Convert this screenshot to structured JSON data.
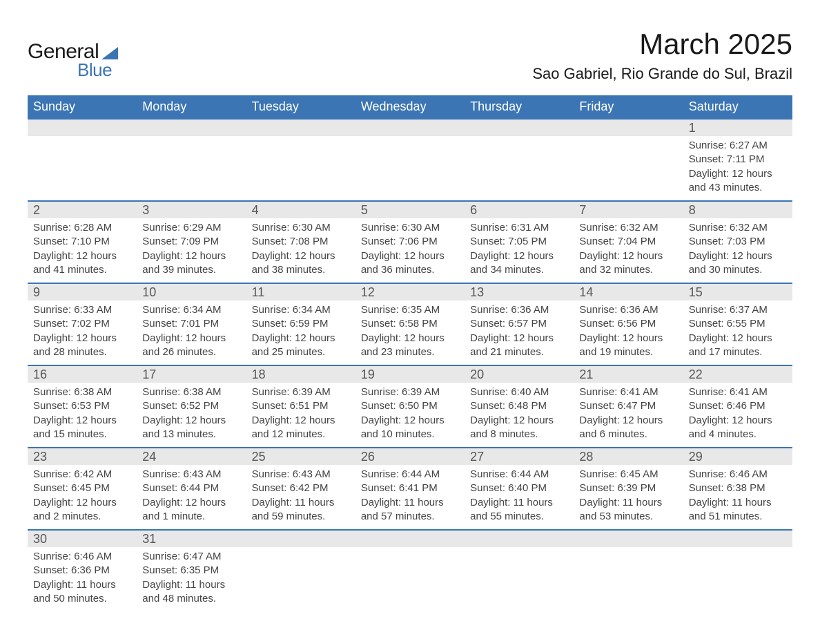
{
  "logo": {
    "word1": "General",
    "word2": "Blue",
    "accent_color": "#3b75b3",
    "text_color": "#1a1a1a"
  },
  "title": "March 2025",
  "location": "Sao Gabriel, Rio Grande do Sul, Brazil",
  "colors": {
    "header_bg": "#3b75b3",
    "header_text": "#ffffff",
    "daynum_bg": "#e8e8e8",
    "daynum_text": "#555555",
    "body_text": "#444444",
    "row_border": "#3b75b3",
    "page_bg": "#ffffff"
  },
  "fonts": {
    "family": "Arial, Helvetica, sans-serif",
    "title_size_pt": 32,
    "location_size_pt": 17,
    "dayheader_size_pt": 14,
    "daynum_size_pt": 14,
    "body_size_pt": 11
  },
  "day_headers": [
    "Sunday",
    "Monday",
    "Tuesday",
    "Wednesday",
    "Thursday",
    "Friday",
    "Saturday"
  ],
  "weeks": [
    [
      {
        "day": "",
        "sunrise": "",
        "sunset": "",
        "daylight": ""
      },
      {
        "day": "",
        "sunrise": "",
        "sunset": "",
        "daylight": ""
      },
      {
        "day": "",
        "sunrise": "",
        "sunset": "",
        "daylight": ""
      },
      {
        "day": "",
        "sunrise": "",
        "sunset": "",
        "daylight": ""
      },
      {
        "day": "",
        "sunrise": "",
        "sunset": "",
        "daylight": ""
      },
      {
        "day": "",
        "sunrise": "",
        "sunset": "",
        "daylight": ""
      },
      {
        "day": "1",
        "sunrise": "Sunrise: 6:27 AM",
        "sunset": "Sunset: 7:11 PM",
        "daylight": "Daylight: 12 hours and 43 minutes."
      }
    ],
    [
      {
        "day": "2",
        "sunrise": "Sunrise: 6:28 AM",
        "sunset": "Sunset: 7:10 PM",
        "daylight": "Daylight: 12 hours and 41 minutes."
      },
      {
        "day": "3",
        "sunrise": "Sunrise: 6:29 AM",
        "sunset": "Sunset: 7:09 PM",
        "daylight": "Daylight: 12 hours and 39 minutes."
      },
      {
        "day": "4",
        "sunrise": "Sunrise: 6:30 AM",
        "sunset": "Sunset: 7:08 PM",
        "daylight": "Daylight: 12 hours and 38 minutes."
      },
      {
        "day": "5",
        "sunrise": "Sunrise: 6:30 AM",
        "sunset": "Sunset: 7:06 PM",
        "daylight": "Daylight: 12 hours and 36 minutes."
      },
      {
        "day": "6",
        "sunrise": "Sunrise: 6:31 AM",
        "sunset": "Sunset: 7:05 PM",
        "daylight": "Daylight: 12 hours and 34 minutes."
      },
      {
        "day": "7",
        "sunrise": "Sunrise: 6:32 AM",
        "sunset": "Sunset: 7:04 PM",
        "daylight": "Daylight: 12 hours and 32 minutes."
      },
      {
        "day": "8",
        "sunrise": "Sunrise: 6:32 AM",
        "sunset": "Sunset: 7:03 PM",
        "daylight": "Daylight: 12 hours and 30 minutes."
      }
    ],
    [
      {
        "day": "9",
        "sunrise": "Sunrise: 6:33 AM",
        "sunset": "Sunset: 7:02 PM",
        "daylight": "Daylight: 12 hours and 28 minutes."
      },
      {
        "day": "10",
        "sunrise": "Sunrise: 6:34 AM",
        "sunset": "Sunset: 7:01 PM",
        "daylight": "Daylight: 12 hours and 26 minutes."
      },
      {
        "day": "11",
        "sunrise": "Sunrise: 6:34 AM",
        "sunset": "Sunset: 6:59 PM",
        "daylight": "Daylight: 12 hours and 25 minutes."
      },
      {
        "day": "12",
        "sunrise": "Sunrise: 6:35 AM",
        "sunset": "Sunset: 6:58 PM",
        "daylight": "Daylight: 12 hours and 23 minutes."
      },
      {
        "day": "13",
        "sunrise": "Sunrise: 6:36 AM",
        "sunset": "Sunset: 6:57 PM",
        "daylight": "Daylight: 12 hours and 21 minutes."
      },
      {
        "day": "14",
        "sunrise": "Sunrise: 6:36 AM",
        "sunset": "Sunset: 6:56 PM",
        "daylight": "Daylight: 12 hours and 19 minutes."
      },
      {
        "day": "15",
        "sunrise": "Sunrise: 6:37 AM",
        "sunset": "Sunset: 6:55 PM",
        "daylight": "Daylight: 12 hours and 17 minutes."
      }
    ],
    [
      {
        "day": "16",
        "sunrise": "Sunrise: 6:38 AM",
        "sunset": "Sunset: 6:53 PM",
        "daylight": "Daylight: 12 hours and 15 minutes."
      },
      {
        "day": "17",
        "sunrise": "Sunrise: 6:38 AM",
        "sunset": "Sunset: 6:52 PM",
        "daylight": "Daylight: 12 hours and 13 minutes."
      },
      {
        "day": "18",
        "sunrise": "Sunrise: 6:39 AM",
        "sunset": "Sunset: 6:51 PM",
        "daylight": "Daylight: 12 hours and 12 minutes."
      },
      {
        "day": "19",
        "sunrise": "Sunrise: 6:39 AM",
        "sunset": "Sunset: 6:50 PM",
        "daylight": "Daylight: 12 hours and 10 minutes."
      },
      {
        "day": "20",
        "sunrise": "Sunrise: 6:40 AM",
        "sunset": "Sunset: 6:48 PM",
        "daylight": "Daylight: 12 hours and 8 minutes."
      },
      {
        "day": "21",
        "sunrise": "Sunrise: 6:41 AM",
        "sunset": "Sunset: 6:47 PM",
        "daylight": "Daylight: 12 hours and 6 minutes."
      },
      {
        "day": "22",
        "sunrise": "Sunrise: 6:41 AM",
        "sunset": "Sunset: 6:46 PM",
        "daylight": "Daylight: 12 hours and 4 minutes."
      }
    ],
    [
      {
        "day": "23",
        "sunrise": "Sunrise: 6:42 AM",
        "sunset": "Sunset: 6:45 PM",
        "daylight": "Daylight: 12 hours and 2 minutes."
      },
      {
        "day": "24",
        "sunrise": "Sunrise: 6:43 AM",
        "sunset": "Sunset: 6:44 PM",
        "daylight": "Daylight: 12 hours and 1 minute."
      },
      {
        "day": "25",
        "sunrise": "Sunrise: 6:43 AM",
        "sunset": "Sunset: 6:42 PM",
        "daylight": "Daylight: 11 hours and 59 minutes."
      },
      {
        "day": "26",
        "sunrise": "Sunrise: 6:44 AM",
        "sunset": "Sunset: 6:41 PM",
        "daylight": "Daylight: 11 hours and 57 minutes."
      },
      {
        "day": "27",
        "sunrise": "Sunrise: 6:44 AM",
        "sunset": "Sunset: 6:40 PM",
        "daylight": "Daylight: 11 hours and 55 minutes."
      },
      {
        "day": "28",
        "sunrise": "Sunrise: 6:45 AM",
        "sunset": "Sunset: 6:39 PM",
        "daylight": "Daylight: 11 hours and 53 minutes."
      },
      {
        "day": "29",
        "sunrise": "Sunrise: 6:46 AM",
        "sunset": "Sunset: 6:38 PM",
        "daylight": "Daylight: 11 hours and 51 minutes."
      }
    ],
    [
      {
        "day": "30",
        "sunrise": "Sunrise: 6:46 AM",
        "sunset": "Sunset: 6:36 PM",
        "daylight": "Daylight: 11 hours and 50 minutes."
      },
      {
        "day": "31",
        "sunrise": "Sunrise: 6:47 AM",
        "sunset": "Sunset: 6:35 PM",
        "daylight": "Daylight: 11 hours and 48 minutes."
      },
      {
        "day": "",
        "sunrise": "",
        "sunset": "",
        "daylight": ""
      },
      {
        "day": "",
        "sunrise": "",
        "sunset": "",
        "daylight": ""
      },
      {
        "day": "",
        "sunrise": "",
        "sunset": "",
        "daylight": ""
      },
      {
        "day": "",
        "sunrise": "",
        "sunset": "",
        "daylight": ""
      },
      {
        "day": "",
        "sunrise": "",
        "sunset": "",
        "daylight": ""
      }
    ]
  ]
}
